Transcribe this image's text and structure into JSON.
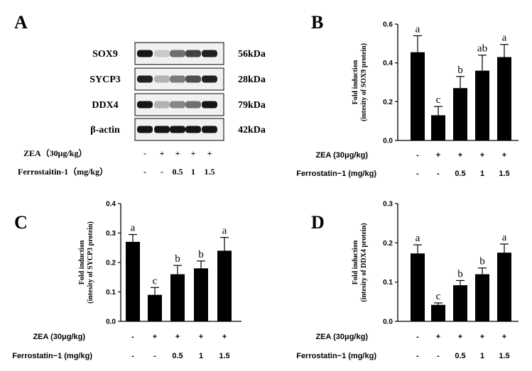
{
  "panel_a": {
    "letter": "A",
    "blots": [
      {
        "label": "SOX9",
        "kda": "56kDa",
        "intensity": [
          0.95,
          0.15,
          0.55,
          0.75,
          0.9
        ]
      },
      {
        "label": "SYCP3",
        "kda": "28kDa",
        "intensity": [
          0.9,
          0.25,
          0.5,
          0.7,
          0.9
        ]
      },
      {
        "label": "DDX4",
        "kda": "79kDa",
        "intensity": [
          0.95,
          0.25,
          0.45,
          0.55,
          0.95
        ]
      },
      {
        "label": "β-actin",
        "kda": "42kDa",
        "intensity": [
          0.95,
          0.95,
          0.95,
          0.95,
          0.95
        ]
      }
    ],
    "zea_label": "ZEA（30μg/kg）",
    "zea_values": [
      "-",
      "+",
      "+",
      "+",
      "+"
    ],
    "fer_label": "Ferrostaitin-1（mg/kg）",
    "fer_values": [
      "-",
      "-",
      "0.5",
      "1",
      "1.5"
    ]
  },
  "chart_data": [
    {
      "panel": "B",
      "type": "bar",
      "ylabel_lines": [
        "Fold induction",
        "(intesity of SOX9 protein)"
      ],
      "ylim": [
        0,
        0.6
      ],
      "yticks": [
        "0.0",
        "0.2",
        "0.4",
        "0.6"
      ],
      "values": [
        0.455,
        0.13,
        0.27,
        0.36,
        0.43
      ],
      "errors": [
        0.085,
        0.045,
        0.06,
        0.08,
        0.065
      ],
      "letters": [
        "a",
        "c",
        "b",
        "ab",
        "a"
      ],
      "zea_label": "ZEA (30μg/kg)",
      "zea_values": [
        "-",
        "+",
        "+",
        "+",
        "+"
      ],
      "fer_label": "Ferrostatin−1 (mg/kg)",
      "fer_values": [
        "-",
        "-",
        "0.5",
        "1",
        "1.5"
      ]
    },
    {
      "panel": "C",
      "type": "bar",
      "ylabel_lines": [
        "Fold induction",
        "(intesity of SYCP3 protein)"
      ],
      "ylim": [
        0,
        0.4
      ],
      "yticks": [
        "0.0",
        "0.1",
        "0.2",
        "0.3",
        "0.4"
      ],
      "values": [
        0.27,
        0.09,
        0.16,
        0.18,
        0.24
      ],
      "errors": [
        0.025,
        0.025,
        0.03,
        0.025,
        0.045
      ],
      "letters": [
        "a",
        "c",
        "b",
        "b",
        "a"
      ],
      "zea_label": "ZEA (30μg/kg)",
      "zea_values": [
        "-",
        "+",
        "+",
        "+",
        "+"
      ],
      "fer_label": "Ferrostatin−1 (mg/kg)",
      "fer_values": [
        "-",
        "-",
        "0.5",
        "1",
        "1.5"
      ]
    },
    {
      "panel": "D",
      "type": "bar",
      "ylabel_lines": [
        "Fold induction",
        "(intesity of DDX4 protein)"
      ],
      "ylim": [
        0,
        0.3
      ],
      "yticks": [
        "0.0",
        "0.1",
        "0.2",
        "0.3"
      ],
      "values": [
        0.173,
        0.042,
        0.092,
        0.12,
        0.175
      ],
      "errors": [
        0.022,
        0.005,
        0.012,
        0.016,
        0.022
      ],
      "letters": [
        "a",
        "c",
        "b",
        "b",
        "a"
      ],
      "zea_label": "ZEA (30μg/kg)",
      "zea_values": [
        "-",
        "+",
        "+",
        "+",
        "+"
      ],
      "fer_label": "Ferrostatin−1 (mg/kg)",
      "fer_values": [
        "-",
        "-",
        "0.5",
        "1",
        "1.5"
      ]
    }
  ]
}
